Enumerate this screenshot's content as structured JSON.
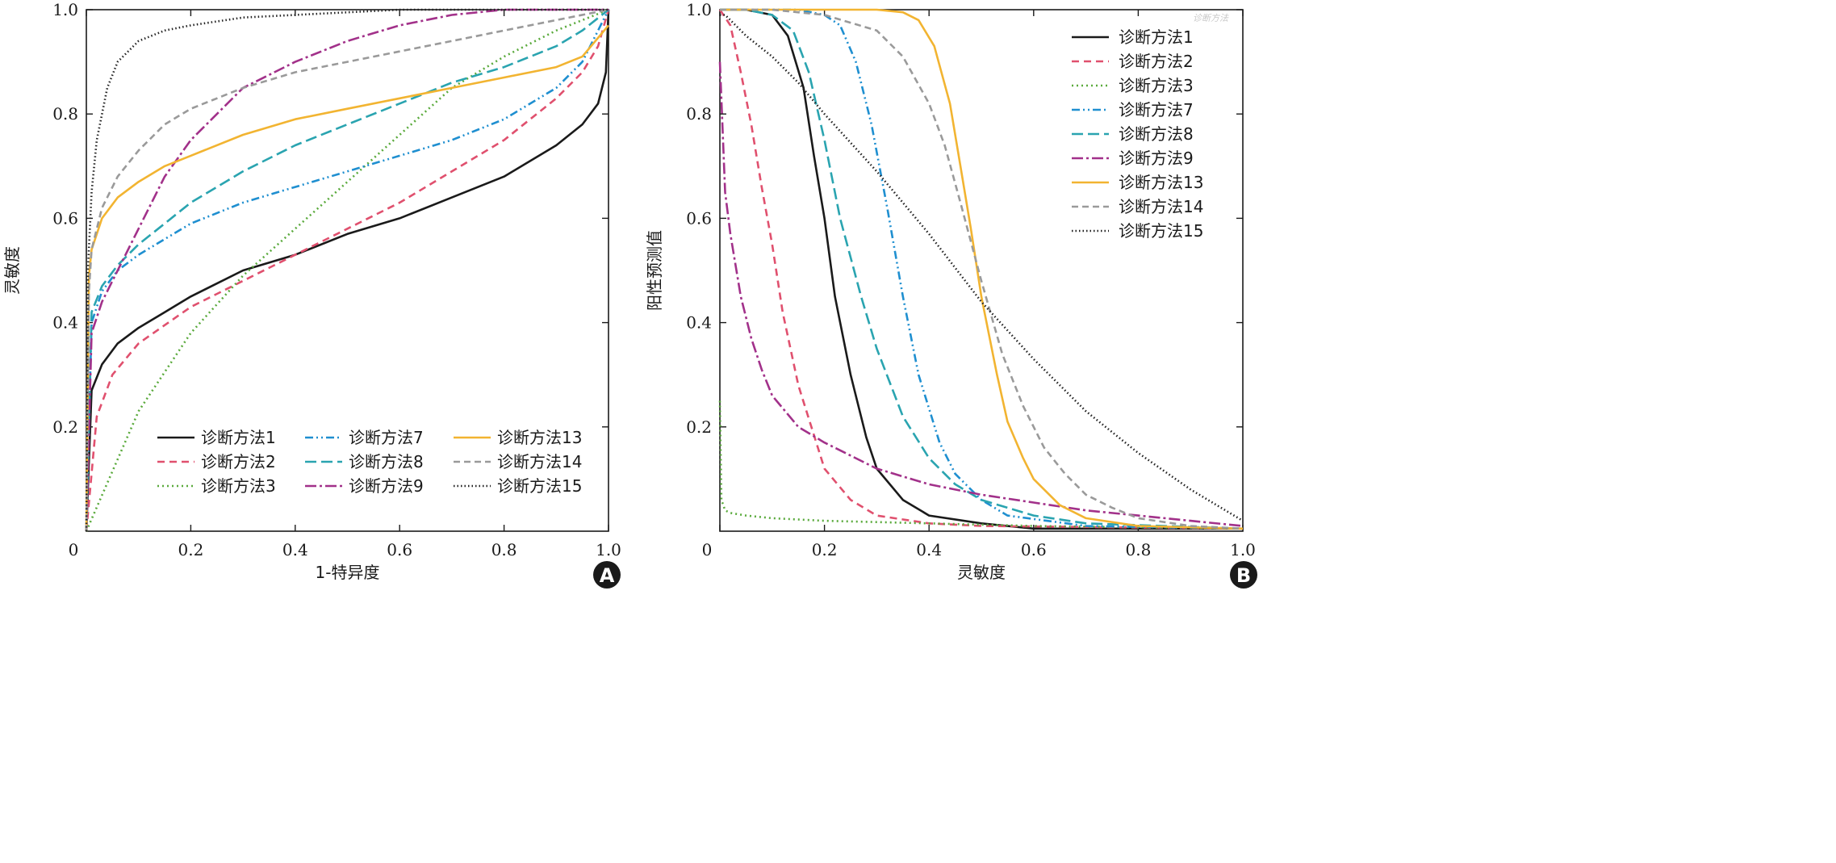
{
  "watermark": "诊断方法",
  "chart_data": [
    {
      "panel": "A",
      "type": "line",
      "xlabel": "1-特异度",
      "ylabel": "灵敏度",
      "xlim": [
        0,
        1
      ],
      "ylim": [
        0,
        1
      ],
      "xticks": [
        "0",
        "0.2",
        "0.4",
        "0.6",
        "0.8",
        "1.0"
      ],
      "yticks": [
        "0.2",
        "0.4",
        "0.6",
        "0.8",
        "1.0"
      ],
      "legend_position": "bottom-right",
      "legend_columns": 3,
      "grid": false,
      "series": [
        {
          "name": "诊断方法1",
          "color": "#1a1a1a",
          "dash": "solid",
          "x": [
            0,
            0.01,
            0.03,
            0.06,
            0.1,
            0.15,
            0.2,
            0.3,
            0.4,
            0.5,
            0.6,
            0.7,
            0.8,
            0.9,
            0.95,
            0.98,
            0.995,
            1.0
          ],
          "y": [
            0,
            0.27,
            0.32,
            0.36,
            0.39,
            0.42,
            0.45,
            0.5,
            0.53,
            0.57,
            0.6,
            0.64,
            0.68,
            0.74,
            0.78,
            0.82,
            0.88,
            1.0
          ]
        },
        {
          "name": "诊断方法2",
          "color": "#e0506e",
          "dash": "9 6",
          "x": [
            0,
            0.02,
            0.05,
            0.1,
            0.2,
            0.3,
            0.4,
            0.5,
            0.6,
            0.7,
            0.8,
            0.9,
            0.95,
            0.98,
            1.0
          ],
          "y": [
            0,
            0.22,
            0.3,
            0.36,
            0.43,
            0.48,
            0.53,
            0.58,
            0.63,
            0.69,
            0.75,
            0.83,
            0.88,
            0.93,
            1.0
          ]
        },
        {
          "name": "诊断方法3",
          "color": "#5aaa3c",
          "dash": "2 4",
          "x": [
            0,
            0.1,
            0.2,
            0.3,
            0.4,
            0.5,
            0.6,
            0.7,
            0.8,
            0.9,
            1.0
          ],
          "y": [
            0,
            0.23,
            0.38,
            0.49,
            0.58,
            0.67,
            0.76,
            0.85,
            0.91,
            0.96,
            1.0
          ]
        },
        {
          "name": "诊断方法7",
          "color": "#1f8fd0",
          "dash": "10 4 2 4 2 4",
          "x": [
            0,
            0.01,
            0.03,
            0.06,
            0.1,
            0.15,
            0.2,
            0.3,
            0.4,
            0.5,
            0.6,
            0.7,
            0.8,
            0.9,
            0.95,
            1.0
          ],
          "y": [
            0,
            0.4,
            0.46,
            0.5,
            0.53,
            0.56,
            0.59,
            0.63,
            0.66,
            0.69,
            0.72,
            0.75,
            0.79,
            0.85,
            0.9,
            1.0
          ]
        },
        {
          "name": "诊断方法8",
          "color": "#2aa4b0",
          "dash": "14 6",
          "x": [
            0,
            0.01,
            0.03,
            0.06,
            0.1,
            0.15,
            0.2,
            0.3,
            0.4,
            0.5,
            0.6,
            0.7,
            0.8,
            0.9,
            0.95,
            1.0
          ],
          "y": [
            0,
            0.42,
            0.47,
            0.51,
            0.55,
            0.59,
            0.63,
            0.69,
            0.74,
            0.78,
            0.82,
            0.86,
            0.89,
            0.93,
            0.96,
            1.0
          ]
        },
        {
          "name": "诊断方法9",
          "color": "#a2318a",
          "dash": "14 4 3 4",
          "x": [
            0,
            0.01,
            0.03,
            0.06,
            0.1,
            0.15,
            0.2,
            0.3,
            0.4,
            0.5,
            0.6,
            0.7,
            0.8,
            0.9,
            1.0
          ],
          "y": [
            0,
            0.38,
            0.44,
            0.5,
            0.58,
            0.68,
            0.75,
            0.85,
            0.9,
            0.94,
            0.97,
            0.99,
            1.0,
            1.0,
            1.0
          ]
        },
        {
          "name": "诊断方法13",
          "color": "#f2b431",
          "dash": "solid",
          "x": [
            0,
            0.005,
            0.01,
            0.03,
            0.06,
            0.1,
            0.15,
            0.2,
            0.3,
            0.4,
            0.5,
            0.6,
            0.7,
            0.8,
            0.9,
            0.95,
            1.0
          ],
          "y": [
            0,
            0.49,
            0.54,
            0.6,
            0.64,
            0.67,
            0.7,
            0.72,
            0.76,
            0.79,
            0.81,
            0.83,
            0.85,
            0.87,
            0.89,
            0.91,
            0.97
          ]
        },
        {
          "name": "诊断方法14",
          "color": "#9a9a9a",
          "dash": "8 5",
          "x": [
            0,
            0.005,
            0.01,
            0.03,
            0.06,
            0.1,
            0.15,
            0.2,
            0.3,
            0.4,
            0.5,
            0.6,
            0.7,
            0.8,
            0.9,
            1.0
          ],
          "y": [
            0,
            0.46,
            0.54,
            0.62,
            0.68,
            0.73,
            0.78,
            0.81,
            0.85,
            0.88,
            0.9,
            0.92,
            0.94,
            0.96,
            0.98,
            1.0
          ]
        },
        {
          "name": "诊断方法15",
          "color": "#222222",
          "dash": "1.5 3",
          "x": [
            0,
            0.003,
            0.01,
            0.02,
            0.04,
            0.06,
            0.1,
            0.15,
            0.2,
            0.3,
            0.4,
            0.6,
            0.8,
            1.0
          ],
          "y": [
            0,
            0.5,
            0.65,
            0.75,
            0.85,
            0.9,
            0.94,
            0.96,
            0.97,
            0.985,
            0.99,
            1.0,
            1.0,
            1.0
          ]
        }
      ]
    },
    {
      "panel": "B",
      "type": "line",
      "xlabel": "灵敏度",
      "ylabel": "阳性预测值",
      "xlim": [
        0,
        1
      ],
      "ylim": [
        0,
        1
      ],
      "xticks": [
        "0",
        "0.2",
        "0.4",
        "0.6",
        "0.8",
        "1.0"
      ],
      "yticks": [
        "0.2",
        "0.4",
        "0.6",
        "0.8",
        "1.0"
      ],
      "legend_position": "top-right",
      "legend_columns": 1,
      "grid": false,
      "series": [
        {
          "name": "诊断方法1",
          "color": "#1a1a1a",
          "dash": "solid",
          "x": [
            0,
            0.05,
            0.1,
            0.13,
            0.16,
            0.18,
            0.2,
            0.22,
            0.25,
            0.28,
            0.3,
            0.35,
            0.4,
            0.5,
            0.6,
            1.0
          ],
          "y": [
            1.0,
            1.0,
            0.99,
            0.95,
            0.85,
            0.72,
            0.6,
            0.45,
            0.3,
            0.18,
            0.12,
            0.06,
            0.03,
            0.015,
            0.005,
            0.005
          ]
        },
        {
          "name": "诊断方法2",
          "color": "#e0506e",
          "dash": "9 6",
          "x": [
            0,
            0.02,
            0.04,
            0.06,
            0.08,
            0.1,
            0.12,
            0.15,
            0.2,
            0.25,
            0.3,
            0.4,
            0.5,
            1.0
          ],
          "y": [
            1.0,
            0.97,
            0.88,
            0.78,
            0.66,
            0.55,
            0.42,
            0.28,
            0.12,
            0.06,
            0.03,
            0.015,
            0.01,
            0.005
          ]
        },
        {
          "name": "诊断方法3",
          "color": "#5aaa3c",
          "dash": "2 4",
          "x": [
            0,
            0.003,
            0.01,
            0.02,
            0.05,
            0.1,
            0.2,
            0.4,
            0.6,
            1.0
          ],
          "y": [
            0.25,
            0.06,
            0.04,
            0.035,
            0.03,
            0.025,
            0.02,
            0.015,
            0.01,
            0.005
          ]
        },
        {
          "name": "诊断方法7",
          "color": "#1f8fd0",
          "dash": "10 4 2 4 2 4",
          "x": [
            0,
            0.15,
            0.2,
            0.23,
            0.26,
            0.29,
            0.32,
            0.35,
            0.38,
            0.42,
            0.45,
            0.5,
            0.55,
            0.7,
            1.0
          ],
          "y": [
            1.0,
            1.0,
            0.99,
            0.97,
            0.9,
            0.78,
            0.62,
            0.45,
            0.3,
            0.17,
            0.11,
            0.06,
            0.03,
            0.01,
            0.005
          ]
        },
        {
          "name": "诊断方法8",
          "color": "#2aa4b0",
          "dash": "14 6",
          "x": [
            0,
            0.05,
            0.1,
            0.14,
            0.17,
            0.2,
            0.23,
            0.27,
            0.3,
            0.35,
            0.4,
            0.45,
            0.5,
            0.6,
            0.7,
            1.0
          ],
          "y": [
            1.0,
            1.0,
            0.99,
            0.96,
            0.88,
            0.75,
            0.6,
            0.45,
            0.35,
            0.22,
            0.14,
            0.09,
            0.06,
            0.03,
            0.015,
            0.005
          ]
        },
        {
          "name": "诊断方法9",
          "color": "#a2318a",
          "dash": "14 4 3 4",
          "x": [
            0,
            0.01,
            0.02,
            0.04,
            0.06,
            0.08,
            0.1,
            0.15,
            0.2,
            0.3,
            0.4,
            0.5,
            0.6,
            0.7,
            0.8,
            0.9,
            1.0
          ],
          "y": [
            0.9,
            0.65,
            0.57,
            0.45,
            0.37,
            0.31,
            0.26,
            0.2,
            0.17,
            0.12,
            0.09,
            0.07,
            0.055,
            0.04,
            0.03,
            0.02,
            0.01
          ]
        },
        {
          "name": "诊断方法13",
          "color": "#f2b431",
          "dash": "solid",
          "x": [
            0,
            0.3,
            0.35,
            0.38,
            0.41,
            0.44,
            0.46,
            0.48,
            0.5,
            0.53,
            0.55,
            0.58,
            0.6,
            0.65,
            0.7,
            0.8,
            1.0
          ],
          "y": [
            1.0,
            1.0,
            0.995,
            0.98,
            0.93,
            0.82,
            0.7,
            0.58,
            0.45,
            0.3,
            0.21,
            0.14,
            0.1,
            0.05,
            0.025,
            0.01,
            0.005
          ]
        },
        {
          "name": "诊断方法14",
          "color": "#9a9a9a",
          "dash": "8 5",
          "x": [
            0,
            0.1,
            0.2,
            0.3,
            0.35,
            0.4,
            0.43,
            0.46,
            0.5,
            0.54,
            0.58,
            0.62,
            0.66,
            0.7,
            0.75,
            0.8,
            0.9,
            1.0
          ],
          "y": [
            1.0,
            1.0,
            0.99,
            0.96,
            0.91,
            0.82,
            0.74,
            0.63,
            0.48,
            0.34,
            0.24,
            0.16,
            0.11,
            0.07,
            0.045,
            0.025,
            0.01,
            0.005
          ]
        },
        {
          "name": "诊断方法15",
          "color": "#222222",
          "dash": "1.5 3",
          "x": [
            0,
            0.01,
            0.02,
            0.05,
            0.1,
            0.15,
            0.2,
            0.3,
            0.4,
            0.5,
            0.6,
            0.7,
            0.8,
            0.9,
            1.0
          ],
          "y": [
            0.99,
            0.99,
            0.98,
            0.95,
            0.91,
            0.86,
            0.8,
            0.69,
            0.57,
            0.44,
            0.33,
            0.23,
            0.15,
            0.08,
            0.02
          ]
        }
      ]
    }
  ],
  "panel_badges": [
    "A",
    "B"
  ]
}
